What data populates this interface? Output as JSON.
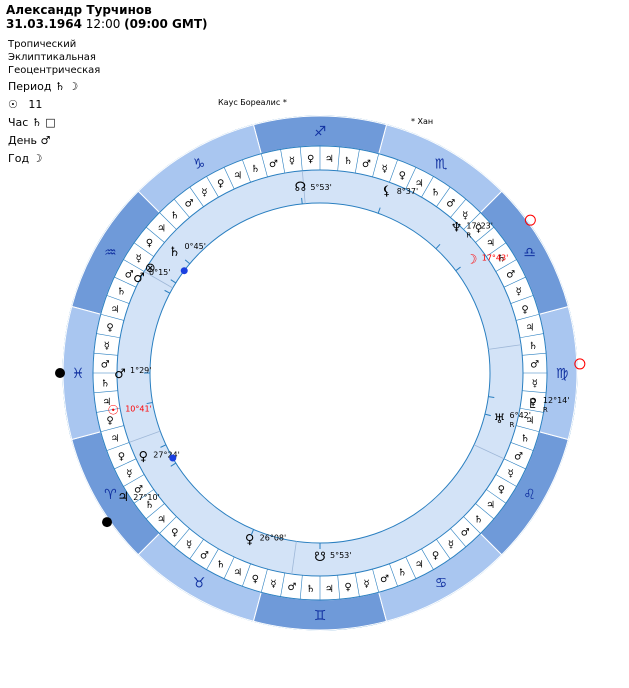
{
  "header": {
    "name": "Александр Турчинов",
    "date": "31.03.1964",
    "time": "12:00",
    "gmt": "(09:00 GMT)"
  },
  "settings": [
    "Тропический",
    "Эклиптикальная",
    "Геоцентрическая"
  ],
  "rulers": {
    "period_label": "Период",
    "period_glyphs": "♄ ☽",
    "sun_glyph": "☉",
    "sun_value": "11",
    "hour_label": "Час",
    "hour_glyphs": "♄ □",
    "day_label": "День",
    "day_glyph": "♂",
    "year_label": "Год",
    "year_glyph": "☽"
  },
  "stars": [
    {
      "name": "Каус Бореалис"
    },
    {
      "name": "Хан"
    }
  ],
  "zodiac": [
    "♈",
    "♉",
    "♊",
    "♋",
    "♌",
    "♍",
    "♎",
    "♏",
    "♐",
    "♑",
    "♒",
    "♓"
  ],
  "planets": [
    {
      "glyph": "☊",
      "label": "5°53'",
      "retro": "",
      "color": "#000000"
    },
    {
      "glyph": "⚸",
      "label": "8°37'",
      "retro": "",
      "color": "#000000"
    },
    {
      "glyph": "♆",
      "label": "17°23'",
      "retro": "R",
      "color": "#000000"
    },
    {
      "glyph": "☽",
      "label": "17°43'",
      "retro": "",
      "color": "#ff0000"
    },
    {
      "glyph": "♂",
      "label": "0°15'",
      "retro": "",
      "color": "#000000"
    },
    {
      "glyph": "⊗",
      "label": "",
      "retro": "",
      "color": "#000000"
    },
    {
      "glyph": "♄",
      "label": "0°45'",
      "retro": "",
      "color": "#000000"
    },
    {
      "glyph": "♂",
      "label": "1°29'",
      "retro": "",
      "color": "#000000"
    },
    {
      "glyph": "☉",
      "label": "10°41'",
      "retro": "",
      "color": "#ff0000"
    },
    {
      "glyph": "♀",
      "label": "27°24'",
      "retro": "",
      "color": "#000000"
    },
    {
      "glyph": "♃",
      "label": "27°10'",
      "retro": "",
      "color": "#000000"
    },
    {
      "glyph": "♀",
      "label": "26°08'",
      "retro": "",
      "color": "#000000"
    },
    {
      "glyph": "☋",
      "label": "5°53'",
      "retro": "",
      "color": "#000000"
    },
    {
      "glyph": "♅",
      "label": "6°42'",
      "retro": "R",
      "color": "#000000"
    },
    {
      "glyph": "♇",
      "label": "12°14'",
      "retro": "R",
      "color": "#000000"
    }
  ],
  "colors": {
    "outer_ring_dark": "#6f9ad9",
    "outer_ring_light": "#a9c6f0",
    "inner_ring": "#d3e3f7",
    "line": "#2a7fc0",
    "highlight": "#ff0000",
    "dot": "#1a3fe0"
  }
}
